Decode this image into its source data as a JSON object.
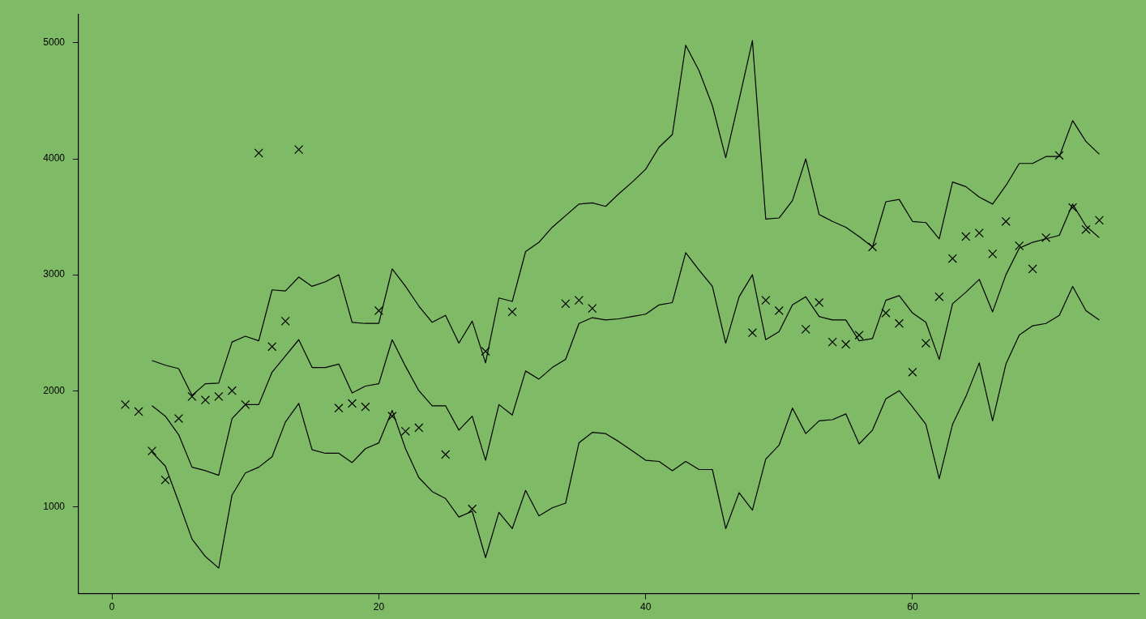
{
  "chart_data": {
    "type": "line",
    "xlim": [
      -2.5,
      77
    ],
    "xticks": [
      0,
      20,
      40,
      60
    ],
    "ylim": [
      250,
      5250
    ],
    "yticks": [
      1000,
      2000,
      3000,
      4000,
      5000
    ],
    "grid": false,
    "series": [
      {
        "color": "#000000",
        "marker": "none",
        "x": [
          3,
          4,
          5,
          6,
          7,
          8,
          9,
          10,
          11,
          12,
          13,
          14,
          15,
          16,
          17,
          18,
          19,
          20,
          21,
          22,
          23,
          24,
          25,
          26,
          27,
          28,
          29,
          30,
          31,
          32,
          33,
          34,
          35,
          36,
          37,
          38,
          39,
          40,
          41,
          42,
          43,
          44,
          45,
          46,
          47,
          48,
          49,
          50,
          51,
          52,
          53,
          54,
          55,
          56,
          57,
          58,
          59,
          60,
          61,
          62,
          63,
          64,
          65,
          66,
          67,
          68,
          69,
          70,
          71,
          72,
          73,
          74
        ],
        "values": [
          2260,
          2220,
          2190,
          1960,
          2060,
          2065,
          2420,
          2470,
          2430,
          2870,
          2860,
          2980,
          2900,
          2940,
          3000,
          2590,
          2580,
          2580,
          3050,
          2900,
          2730,
          2590,
          2650,
          2410,
          2600,
          2240,
          2800,
          2770,
          3200,
          3280,
          3410,
          3510,
          3610,
          3620,
          3590,
          3700,
          3800,
          3910,
          4100,
          4210,
          4980,
          4760,
          4460,
          4010,
          4510,
          5020,
          3480,
          3490,
          3640,
          4000,
          3520,
          3460,
          3410,
          3330,
          3240,
          3630,
          3650,
          3460,
          3450,
          3310,
          3800,
          3760,
          3670,
          3610,
          3770,
          3960,
          3960,
          4020,
          4020,
          4330,
          4150,
          4040
        ]
      },
      {
        "color": "#000000",
        "marker": "none",
        "x": [
          3,
          4,
          5,
          6,
          7,
          8,
          9,
          10,
          11,
          12,
          13,
          14,
          15,
          16,
          17,
          18,
          19,
          20,
          21,
          22,
          23,
          24,
          25,
          26,
          27,
          28,
          29,
          30,
          31,
          32,
          33,
          34,
          35,
          36,
          37,
          38,
          39,
          40,
          41,
          42,
          43,
          44,
          45,
          46,
          47,
          48,
          49,
          50,
          51,
          52,
          53,
          54,
          55,
          56,
          57,
          58,
          59,
          60,
          61,
          62,
          63,
          64,
          65,
          66,
          67,
          68,
          69,
          70,
          71,
          72,
          73,
          74
        ],
        "values": [
          1870,
          1780,
          1620,
          1340,
          1310,
          1270,
          1760,
          1880,
          1880,
          2160,
          2300,
          2440,
          2200,
          2200,
          2230,
          1980,
          2040,
          2060,
          2440,
          2210,
          2000,
          1870,
          1870,
          1660,
          1780,
          1400,
          1880,
          1790,
          2170,
          2100,
          2200,
          2270,
          2580,
          2630,
          2610,
          2620,
          2640,
          2660,
          2740,
          2760,
          3190,
          3040,
          2900,
          2410,
          2810,
          3000,
          2440,
          2510,
          2740,
          2810,
          2640,
          2610,
          2610,
          2430,
          2450,
          2780,
          2820,
          2670,
          2590,
          2270,
          2750,
          2850,
          2960,
          2680,
          3000,
          3230,
          3280,
          3310,
          3340,
          3610,
          3420,
          3320
        ]
      },
      {
        "color": "#000000",
        "marker": "none",
        "x": [
          3,
          4,
          5,
          6,
          7,
          8,
          9,
          10,
          11,
          12,
          13,
          14,
          15,
          16,
          17,
          18,
          19,
          20,
          21,
          22,
          23,
          24,
          25,
          26,
          27,
          28,
          29,
          30,
          31,
          32,
          33,
          34,
          35,
          36,
          37,
          38,
          39,
          40,
          41,
          42,
          43,
          44,
          45,
          46,
          47,
          48,
          49,
          50,
          51,
          52,
          53,
          54,
          55,
          56,
          57,
          58,
          59,
          60,
          61,
          62,
          63,
          64,
          65,
          66,
          67,
          68,
          69,
          70,
          71,
          72,
          73,
          74
        ],
        "values": [
          1470,
          1350,
          1040,
          720,
          570,
          470,
          1100,
          1290,
          1340,
          1430,
          1730,
          1890,
          1490,
          1460,
          1460,
          1380,
          1500,
          1550,
          1830,
          1500,
          1250,
          1130,
          1070,
          910,
          960,
          560,
          950,
          810,
          1140,
          920,
          990,
          1030,
          1550,
          1640,
          1630,
          1560,
          1480,
          1400,
          1390,
          1310,
          1390,
          1320,
          1320,
          810,
          1120,
          970,
          1410,
          1530,
          1850,
          1630,
          1740,
          1750,
          1800,
          1540,
          1660,
          1930,
          2000,
          1860,
          1710,
          1240,
          1710,
          1950,
          2240,
          1740,
          2230,
          2480,
          2560,
          2580,
          2650,
          2900,
          2690,
          2610
        ]
      },
      {
        "type": "scatter",
        "color": "#000000",
        "marker": "cross",
        "x": [
          1,
          2,
          3,
          4,
          5,
          6,
          7,
          8,
          9,
          10,
          11,
          12,
          13,
          14,
          17,
          18,
          19,
          20,
          21,
          22,
          23,
          25,
          27,
          28,
          30,
          34,
          35,
          36,
          48,
          49,
          50,
          52,
          53,
          54,
          55,
          56,
          57,
          58,
          59,
          60,
          61,
          62,
          63,
          64,
          65,
          66,
          67,
          68,
          69,
          70,
          71,
          72,
          73,
          74
        ],
        "values": [
          1880,
          1820,
          1480,
          1230,
          1760,
          1950,
          1920,
          1950,
          2000,
          1880,
          4050,
          2380,
          2600,
          4080,
          1850,
          1890,
          1860,
          2690,
          1780,
          1650,
          1680,
          1450,
          980,
          2340,
          2680,
          2750,
          2780,
          2710,
          2500,
          2780,
          2690,
          2530,
          2760,
          2420,
          2400,
          2480,
          3240,
          2670,
          2580,
          2160,
          2410,
          2810,
          3140,
          3330,
          3360,
          3180,
          3460,
          3250,
          3050,
          3320,
          4030,
          3580,
          3390,
          3470
        ]
      }
    ]
  }
}
